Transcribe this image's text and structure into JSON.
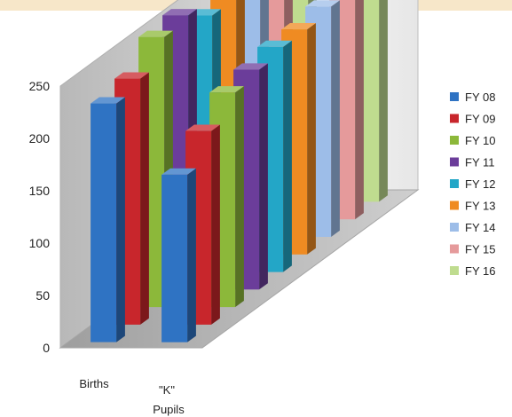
{
  "chart_data": {
    "type": "bar",
    "subtype": "3d-clustered-column",
    "title": "",
    "xlabel": "",
    "ylabel": "",
    "categories": [
      "Births",
      "\"K\" Pupils"
    ],
    "yticks": [
      0,
      50,
      100,
      150,
      200,
      250
    ],
    "ylim": [
      0,
      250
    ],
    "grid": false,
    "legend_position": "right",
    "series": [
      {
        "name": "FY 08",
        "color": "#2f73c3",
        "values": [
          228,
          160
        ]
      },
      {
        "name": "FY 09",
        "color": "#c8262c",
        "values": [
          235,
          185
        ]
      },
      {
        "name": "FY 10",
        "color": "#8cb83a",
        "values": [
          258,
          205
        ]
      },
      {
        "name": "FY 11",
        "color": "#6b3d9a",
        "values": [
          262,
          210
        ]
      },
      {
        "name": "FY 12",
        "color": "#23a6c7",
        "values": [
          245,
          215
        ]
      },
      {
        "name": "FY 13",
        "color": "#ef8b22",
        "values": [
          248,
          215
        ]
      },
      {
        "name": "FY 14",
        "color": "#9dbde8",
        "values": [
          270,
          220
        ]
      },
      {
        "name": "FY 15",
        "color": "#e59a9b",
        "values": [
          265,
          215
        ]
      },
      {
        "name": "FY 16",
        "color": "#bfdc8f",
        "values": [
          270,
          235
        ]
      }
    ]
  }
}
